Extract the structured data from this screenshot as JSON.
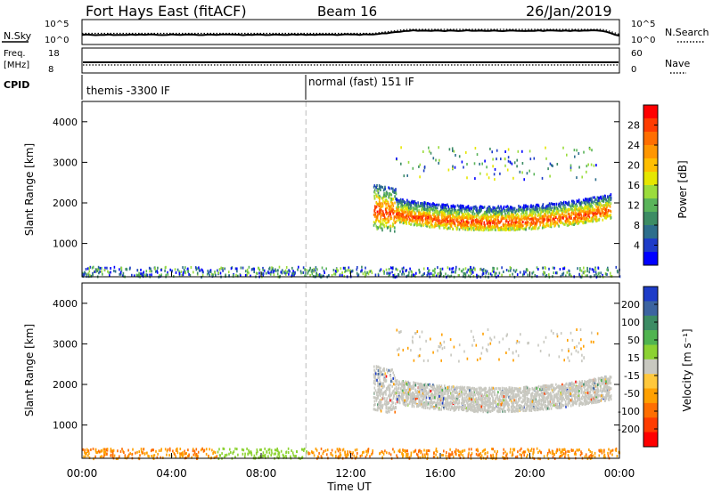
{
  "header": {
    "station": "Fort Hays East (fitACF)",
    "beam": "Beam 16",
    "date": "26/Jan/2019"
  },
  "noise_panel": {
    "left_label": "N.Sky",
    "right_label": "N.Search",
    "left_ticks": [
      "10^5",
      "10^0"
    ],
    "right_ticks": [
      "10^5",
      "10^0"
    ],
    "right_legend_line": "dotted"
  },
  "freq_panel": {
    "left_label_1": "Freq.",
    "left_label_2": "[MHz]",
    "right_label": "Nave",
    "left_ticks": [
      "18",
      "8"
    ],
    "right_ticks": [
      "60",
      "0"
    ]
  },
  "cpid_panel": {
    "label": "CPID",
    "modes": [
      {
        "text": "themis -3300 IF",
        "start_hour": 0
      },
      {
        "text": "normal (fast) 151 IF",
        "start_hour": 10
      }
    ]
  },
  "chart_data": [
    {
      "type": "heatmap",
      "name": "power",
      "ylabel": "Slant Range [km]",
      "ylim": [
        180,
        4500
      ],
      "yticks": [
        1000,
        2000,
        3000,
        4000
      ],
      "xlim": [
        0,
        24
      ],
      "xticks": [
        "00:00",
        "04:00",
        "08:00",
        "12:00",
        "16:00",
        "20:00",
        "00:00"
      ],
      "colorbar": {
        "label": "Power [dB]",
        "ticks": [
          "28",
          "24",
          "20",
          "16",
          "12",
          "8",
          "4"
        ],
        "colors": [
          "#ff0000",
          "#ff3c00",
          "#ff6e00",
          "#ff9600",
          "#ffbe00",
          "#e6e600",
          "#9bdc3c",
          "#5ab45a",
          "#3c8c64",
          "#2d6e8c",
          "#1e3cc8",
          "#0000ff"
        ]
      },
      "features": [
        {
          "desc": "near range scatter",
          "x_hours": [
            0,
            24
          ],
          "range_km": [
            200,
            450
          ]
        },
        {
          "desc": "main echo band",
          "x_hours": [
            13,
            23.6
          ],
          "range_km": [
            1300,
            2500
          ],
          "peak_db": 28
        },
        {
          "desc": "sparse far range",
          "x_hours": [
            14,
            23
          ],
          "range_km": [
            2700,
            3300
          ]
        }
      ]
    },
    {
      "type": "heatmap",
      "name": "velocity",
      "ylabel": "Slant Range [km]",
      "ylim": [
        180,
        4500
      ],
      "yticks": [
        1000,
        2000,
        3000,
        4000
      ],
      "xlim": [
        0,
        24
      ],
      "xticks": [
        "00:00",
        "04:00",
        "08:00",
        "12:00",
        "16:00",
        "20:00",
        "00:00"
      ],
      "xlabel": "Time UT",
      "colorbar": {
        "label": "Velocity [m s⁻¹]",
        "ticks": [
          "200",
          "100",
          "50",
          "15",
          "-15",
          "-50",
          "-100",
          "-200"
        ],
        "colors": [
          "#1e3cc8",
          "#3c64a0",
          "#3c8c64",
          "#50b450",
          "#8cd232",
          "#c8c8c0",
          "#ffc83c",
          "#ffa000",
          "#ff6e00",
          "#ff3c00",
          "#ff0000"
        ]
      },
      "features": [
        {
          "desc": "ground scatter band",
          "x_hours": [
            13,
            23.6
          ],
          "range_km": [
            1300,
            2500
          ],
          "velocity": 0
        },
        {
          "desc": "near range scatter",
          "x_hours": [
            0,
            24
          ],
          "range_km": [
            200,
            450
          ],
          "velocity": -60
        }
      ]
    }
  ]
}
